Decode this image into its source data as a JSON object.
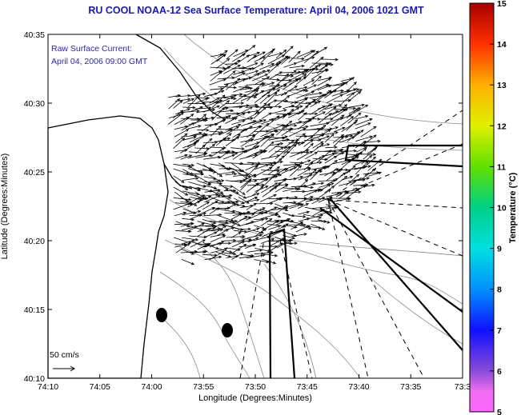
{
  "title": "RU COOL  NOAA-12  Sea Surface Temperature:  April 04, 2006 1021 GMT",
  "annotation": {
    "line1": "Raw Surface Current:",
    "line2": "April 04, 2006 09:00 GMT"
  },
  "scale_label": "50 cm/s",
  "axes": {
    "xlabel": "Longitude (Degrees:Minutes)",
    "ylabel": "Latitude (Degrees:Minutes)",
    "x_ticks": [
      "74:10",
      "74:05",
      "74:00",
      "73:55",
      "73:50",
      "73:45",
      "73:40",
      "73:35",
      "73:3"
    ],
    "y_ticks": [
      "40:35",
      "40:30",
      "40:25",
      "40:20",
      "40:15",
      "40:10"
    ]
  },
  "colorbar": {
    "label": "Temperature (°C)",
    "ticks": [
      "15",
      "14",
      "13",
      "12",
      "11",
      "10",
      "9",
      "8",
      "7",
      "6",
      "5"
    ],
    "range": [
      5,
      15
    ]
  }
}
